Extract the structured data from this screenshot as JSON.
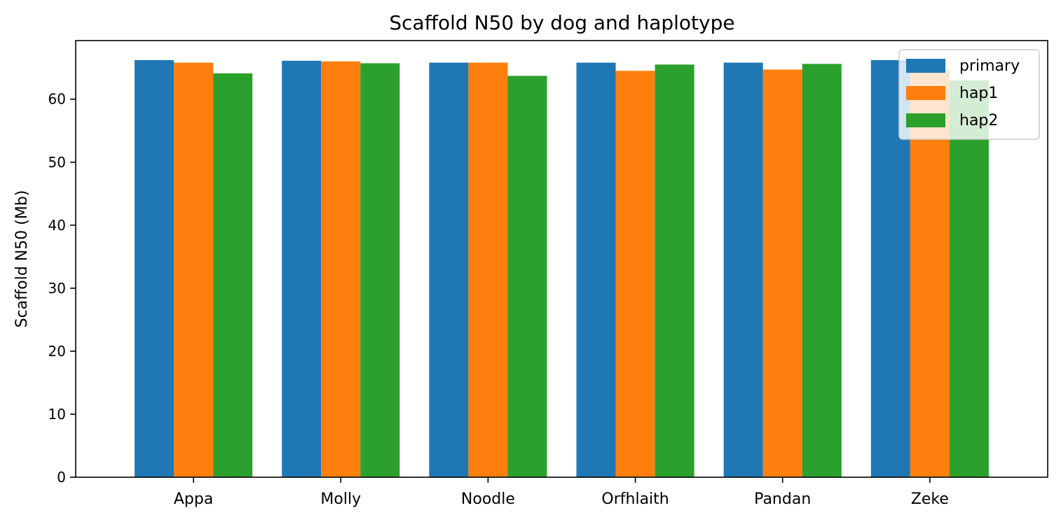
{
  "chart_data": {
    "type": "bar",
    "title": "Scaffold N50 by dog and haplotype",
    "xlabel": "",
    "ylabel": "Scaffold N50 (Mb)",
    "ylim": [
      0,
      69.3
    ],
    "yticks": [
      0,
      10,
      20,
      30,
      40,
      50,
      60
    ],
    "categories": [
      "Appa",
      "Molly",
      "Noodle",
      "Orfhlaith",
      "Pandan",
      "Zeke"
    ],
    "series": [
      {
        "name": "primary",
        "color": "#1f77b4",
        "values": [
          66.2,
          66.1,
          65.8,
          65.8,
          65.8,
          66.2
        ]
      },
      {
        "name": "hap1",
        "color": "#ff7f0e",
        "values": [
          65.8,
          66.0,
          65.8,
          64.5,
          64.7,
          64.7
        ]
      },
      {
        "name": "hap2",
        "color": "#2ca02c",
        "values": [
          64.1,
          65.7,
          63.7,
          65.5,
          65.6,
          63.0
        ]
      }
    ],
    "grid": false,
    "legend": "top-right"
  }
}
